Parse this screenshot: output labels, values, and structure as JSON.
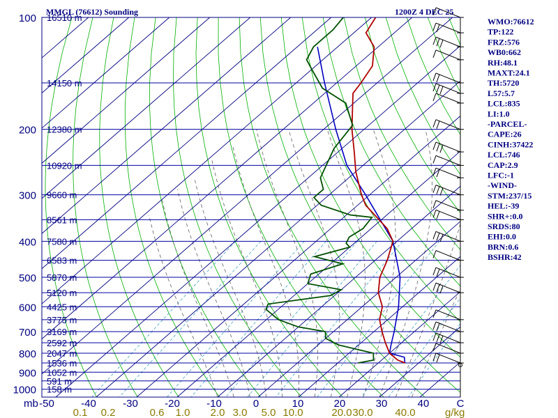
{
  "title_left": "MMGL (76612) Sounding",
  "title_right": "1200Z  4 DEC 25",
  "colors": {
    "isobar": "#0000a0",
    "isotherm": "#000080",
    "dry_adiabat": "#00b000",
    "moist_adiabat": "#606060",
    "mixing_ratio": "#40a0c0",
    "temperature": "#b00000",
    "dewpoint": "#005000",
    "parcel": "#0000c0",
    "wind_barb": "#000000"
  },
  "chart_data": {
    "type": "skew-t",
    "pressure_levels": [
      100,
      200,
      300,
      400,
      500,
      600,
      700,
      800,
      900,
      1000
    ],
    "pressure_unit_label": "mb",
    "temperature_ticks": [
      -50,
      -40,
      -30,
      -20,
      -10,
      0,
      10,
      20,
      30,
      40
    ],
    "temperature_end_label": "C",
    "mixing_ratio_ticks": [
      "0.1",
      "0.2",
      "0.6",
      "1.0",
      "2.0",
      "3.0",
      "5.0",
      "10.0",
      "20.0",
      "30.0",
      "40.0"
    ],
    "mixing_ratio_unit": "g/kg",
    "height_labels": [
      {
        "p": 100,
        "text": "16510 m"
      },
      {
        "p": 150,
        "text": "14150 m"
      },
      {
        "p": 200,
        "text": "12380 m"
      },
      {
        "p": 250,
        "text": "10920 m"
      },
      {
        "p": 300,
        "text": "9660 m"
      },
      {
        "p": 350,
        "text": "8561 m"
      },
      {
        "p": 400,
        "text": "7580 m"
      },
      {
        "p": 450,
        "text": "6583 m"
      },
      {
        "p": 500,
        "text": "5870 m"
      },
      {
        "p": 550,
        "text": "5120 m"
      },
      {
        "p": 600,
        "text": "4425 m"
      },
      {
        "p": 650,
        "text": "3775 m"
      },
      {
        "p": 700,
        "text": "3169 m"
      },
      {
        "p": 750,
        "text": "2592 m"
      },
      {
        "p": 800,
        "text": "2047 m"
      },
      {
        "p": 850,
        "text": "1536 m"
      },
      {
        "p": 900,
        "text": "1052 m"
      },
      {
        "p": 950,
        "text": "591 m"
      },
      {
        "p": 1000,
        "text": "158 m"
      }
    ],
    "temperature_profile": [
      [
        850,
        26.6
      ],
      [
        835,
        24.0
      ],
      [
        800,
        20.0
      ],
      [
        750,
        16.0
      ],
      [
        700,
        12.0
      ],
      [
        650,
        8.0
      ],
      [
        600,
        5.0
      ],
      [
        550,
        0.0
      ],
      [
        500,
        -4.0
      ],
      [
        450,
        -7.0
      ],
      [
        400,
        -11.0
      ],
      [
        370,
        -16.0
      ],
      [
        340,
        -23.0
      ],
      [
        320,
        -28.0
      ],
      [
        300,
        -32.0
      ],
      [
        260,
        -40.0
      ],
      [
        230,
        -46.0
      ],
      [
        200,
        -53.0
      ],
      [
        175,
        -59.0
      ],
      [
        160,
        -63.0
      ],
      [
        150,
        -64.0
      ],
      [
        135,
        -66.0
      ],
      [
        120,
        -71.0
      ],
      [
        110,
        -77.0
      ],
      [
        100,
        -79.0
      ]
    ],
    "dewpoint_profile": [
      [
        850,
        15.0
      ],
      [
        835,
        18.0
      ],
      [
        800,
        16.0
      ],
      [
        760,
        5.0
      ],
      [
        730,
        0.0
      ],
      [
        700,
        -2.0
      ],
      [
        680,
        -10.0
      ],
      [
        650,
        -17.0
      ],
      [
        610,
        -23.0
      ],
      [
        590,
        -24.0
      ],
      [
        560,
        -11.0
      ],
      [
        540,
        -10.0
      ],
      [
        520,
        -20.0
      ],
      [
        490,
        -22.0
      ],
      [
        460,
        -17.0
      ],
      [
        440,
        -26.0
      ],
      [
        415,
        -20.0
      ],
      [
        405,
        -22.0
      ],
      [
        390,
        -23.0
      ],
      [
        370,
        -22.0
      ],
      [
        345,
        -23.0
      ],
      [
        340,
        -29.0
      ],
      [
        320,
        -39.0
      ],
      [
        305,
        -43.0
      ],
      [
        290,
        -43.0
      ],
      [
        270,
        -47.0
      ],
      [
        225,
        -52.0
      ],
      [
        195,
        -54.0
      ],
      [
        170,
        -62.0
      ],
      [
        155,
        -72.0
      ],
      [
        140,
        -79.0
      ],
      [
        130,
        -84.0
      ],
      [
        120,
        -86.0
      ],
      [
        108,
        -86.0
      ],
      [
        100,
        -87.0
      ]
    ],
    "parcel_profile": [
      [
        850,
        26.6
      ],
      [
        820,
        24.8
      ],
      [
        800,
        20.0
      ],
      [
        760,
        18.0
      ],
      [
        700,
        15.0
      ],
      [
        600,
        9.0
      ],
      [
        500,
        1.0
      ],
      [
        400,
        -11.0
      ],
      [
        300,
        -31.0
      ],
      [
        250,
        -44.0
      ],
      [
        200,
        -57.0
      ],
      [
        150,
        -73.0
      ],
      [
        120,
        -85.0
      ]
    ],
    "wind_barbs_at": [
      100,
      110,
      120,
      130,
      150,
      160,
      170,
      200,
      230,
      250,
      270,
      300,
      330,
      350,
      400,
      450,
      500,
      550,
      650,
      700,
      750,
      800,
      850
    ]
  },
  "stats": [
    "WMO:76612",
    "TP:122",
    "FRZ:576",
    "WB0:662",
    "RH:48.1",
    "MAXT:24.1",
    "TH:5720",
    "L57:5.7",
    "LCL:835",
    "LI:1.0",
    "-PARCEL-",
    "CAPE:26",
    "CINH:37422",
    "LCL:746",
    "CAP:2.9",
    "LFC:-1",
    "-WIND-",
    "STM:237/15",
    "HEL:-39",
    "SHR+:0.0",
    "SRDS:80",
    "EHI:0.0",
    "BRN:0.6",
    "BSHR:42"
  ]
}
